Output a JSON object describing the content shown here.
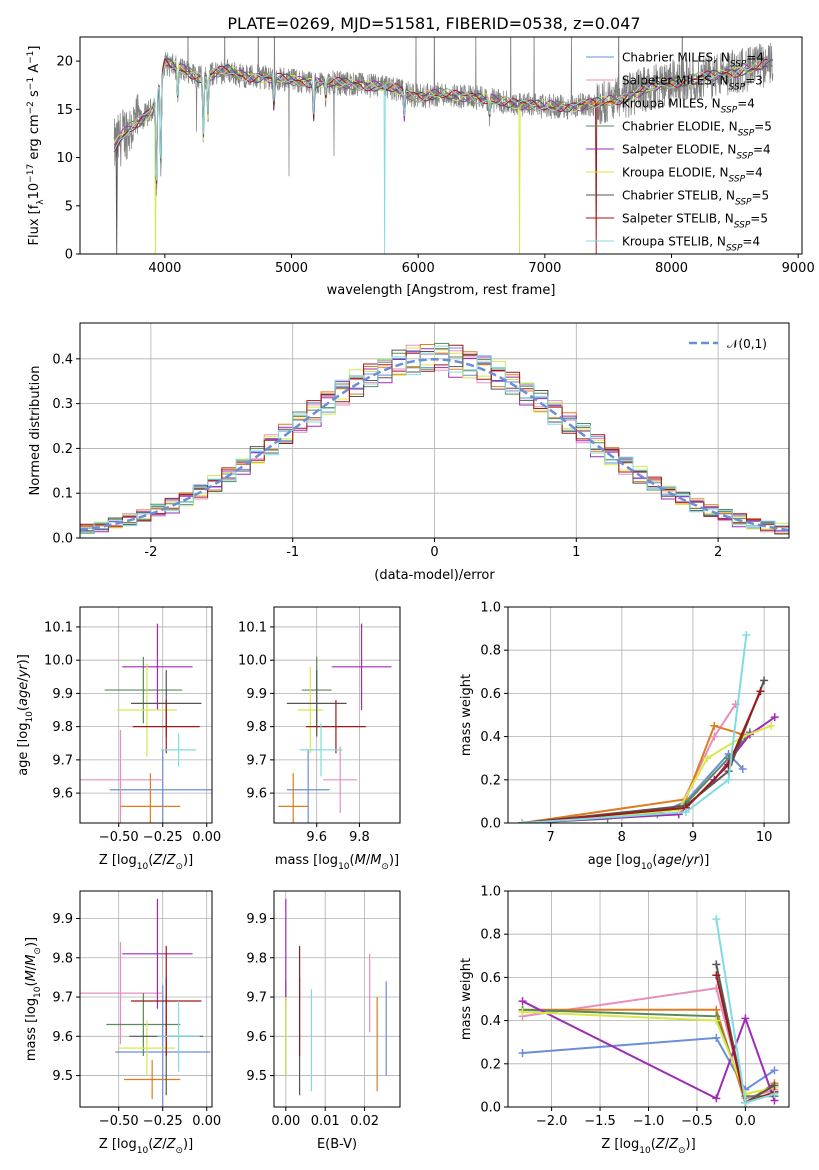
{
  "figure_title": "PLATE=0269, MJD=51581, FIBERID=0538, z=0.047",
  "colors": {
    "Chabrier MILES": "#6a8ed8",
    "Salpeter MILES": "#e58fbf",
    "Kroupa MILES": "#e07b20",
    "Chabrier ELODIE": "#5a8a5a",
    "Salpeter ELODIE": "#a02ab8",
    "Kroupa ELODIE": "#d8e84a",
    "Chabrier STELIB": "#555555",
    "Salpeter STELIB": "#a01818",
    "Kroupa STELIB": "#80dce0",
    "data": "#808080",
    "normal": "#6a8ed8"
  },
  "chart_data": [
    {
      "id": "spectrum",
      "type": "line",
      "title": "PLATE=0269, MJD=51581, FIBERID=0538, z=0.047",
      "xlabel": "wavelength [Angstrom, rest frame]",
      "ylabel": "Flux [f_λ 10^-17 erg cm^-2 s^-1 A^-1]",
      "xlim": [
        3330,
        9030
      ],
      "ylim": [
        0,
        22.5
      ],
      "xticks": [
        4000,
        5000,
        6000,
        7000,
        8000,
        9000
      ],
      "yticks": [
        0,
        5,
        10,
        15,
        20
      ],
      "legend_position": "top-right",
      "legend": [
        {
          "name": "Chabrier MILES",
          "nssp": "4"
        },
        {
          "name": "Salpeter MILES",
          "nssp": "3"
        },
        {
          "name": "Kroupa MILES",
          "nssp": "4"
        },
        {
          "name": "Chabrier ELODIE",
          "nssp": "5"
        },
        {
          "name": "Salpeter ELODIE",
          "nssp": "4"
        },
        {
          "name": "Kroupa ELODIE",
          "nssp": "4"
        },
        {
          "name": "Chabrier STELIB",
          "nssp": "5"
        },
        {
          "name": "Salpeter STELIB",
          "nssp": "5"
        },
        {
          "name": "Kroupa STELIB",
          "nssp": "4"
        }
      ],
      "continuum": {
        "x": [
          3600,
          3650,
          3700,
          3800,
          3900,
          3950,
          4000,
          4100,
          4200,
          4300,
          4400,
          4500,
          4600,
          4800,
          5000,
          5200,
          5400,
          5600,
          5800,
          6000,
          6200,
          6400,
          6600,
          6800,
          7000,
          7200,
          7400,
          7600,
          7800,
          8000,
          8200,
          8400,
          8600,
          8750
        ],
        "y": [
          11.0,
          12.0,
          12.8,
          13.8,
          15.0,
          17.0,
          19.8,
          19.3,
          18.8,
          18.2,
          18.8,
          19.0,
          18.5,
          18.3,
          18.0,
          17.8,
          17.7,
          17.5,
          17.2,
          16.3,
          16.6,
          16.3,
          15.9,
          15.6,
          15.3,
          15.3,
          15.6,
          16.1,
          17.1,
          17.8,
          18.2,
          18.6,
          19.2,
          19.6
        ]
      },
      "absorption_lines": [
        {
          "x": 3933,
          "depth": 10.0
        },
        {
          "x": 3968,
          "depth": 9.0
        },
        {
          "x": 4102,
          "depth": 3.0
        },
        {
          "x": 4304,
          "depth": 6.0
        },
        {
          "x": 4340,
          "depth": 4.0
        },
        {
          "x": 4861,
          "depth": 3.0
        },
        {
          "x": 5175,
          "depth": 3.5
        },
        {
          "x": 5270,
          "depth": 1.5
        },
        {
          "x": 5890,
          "depth": 2.5
        },
        {
          "x": 6563,
          "depth": 1.5
        }
      ],
      "masked_regions": [
        {
          "x": 3620,
          "drop": 11.5,
          "series": "Chabrier STELIB"
        },
        {
          "x": 3925,
          "drop": 14.5,
          "series": "Kroupa ELODIE"
        },
        {
          "x": 5735,
          "drop": 17.5,
          "series": "Kroupa STELIB"
        },
        {
          "x": 6800,
          "drop": 16.0,
          "series": "Kroupa ELODIE"
        },
        {
          "x": 7405,
          "drop": 16.0,
          "series": "Salpeter STELIB"
        }
      ],
      "data_range": [
        3600,
        8800
      ]
    },
    {
      "id": "residuals",
      "type": "area",
      "xlabel": "(data-model)/error",
      "ylabel": "Normed distribution",
      "xlim": [
        -2.5,
        2.5
      ],
      "ylim": [
        0,
        0.48
      ],
      "xticks": [
        -2,
        -1,
        0,
        1,
        2
      ],
      "yticks": [
        0.0,
        0.1,
        0.2,
        0.3,
        0.4
      ],
      "legend_position": "top-right",
      "legend": [
        {
          "name": "𝒩(0,1)",
          "style": "dashed"
        }
      ],
      "bin_width": 0.1,
      "bin_start": -2.5,
      "perturbation": [
        [
          0.005,
          -0.01,
          0.012,
          0.02,
          -0.015,
          0.01,
          0.025,
          -0.02,
          0.015,
          -0.01
        ],
        [
          -0.012,
          0.018,
          -0.008,
          0.03,
          0.01,
          -0.02,
          0.02,
          0.015,
          -0.025,
          0.01
        ],
        [
          0.02,
          0.005,
          -0.018,
          -0.01,
          0.028,
          0.012,
          -0.015,
          0.025,
          0.01,
          -0.02
        ],
        [
          -0.02,
          0.015,
          0.022,
          -0.012,
          -0.018,
          0.03,
          0.008,
          -0.01,
          0.02,
          0.015
        ],
        [
          0.015,
          -0.025,
          0.01,
          0.018,
          0.02,
          -0.015,
          -0.03,
          0.012,
          0.025,
          -0.008
        ],
        [
          0.01,
          0.022,
          -0.02,
          0.025,
          -0.01,
          0.018,
          0.015,
          -0.025,
          -0.012,
          0.03
        ],
        [
          -0.008,
          -0.015,
          0.028,
          -0.02,
          0.015,
          0.02,
          -0.01,
          0.018,
          0.012,
          -0.025
        ],
        [
          0.025,
          0.01,
          -0.012,
          0.015,
          -0.022,
          -0.01,
          0.03,
          0.02,
          -0.018,
          0.012
        ],
        [
          -0.015,
          0.02,
          0.015,
          -0.025,
          0.012,
          0.025,
          -0.02,
          -0.012,
          0.028,
          0.018
        ]
      ]
    },
    {
      "id": "age-vs-Z",
      "type": "scatter",
      "xlabel": "Z [log10(Z/Z☉)]",
      "ylabel": "age [log10(age/yr)]",
      "xlim": [
        -0.72,
        0.03
      ],
      "ylim": [
        9.51,
        10.16
      ],
      "xticks": [
        -0.5,
        -0.25,
        0.0
      ],
      "xticklabels": [
        "−0.50",
        "−0.25",
        "0.00"
      ],
      "yticks": [
        9.6,
        9.7,
        9.8,
        9.9,
        10.0,
        10.1
      ],
      "points": [
        {
          "series": "Chabrier MILES",
          "x": -0.25,
          "y": 9.61,
          "xerr": 0.3,
          "yerr": 0.12
        },
        {
          "series": "Salpeter MILES",
          "x": -0.49,
          "y": 9.64,
          "xerr": 0.24,
          "yerr": 0.15
        },
        {
          "series": "Kroupa MILES",
          "x": -0.32,
          "y": 9.56,
          "xerr": 0.17,
          "yerr": 0.1
        },
        {
          "series": "Chabrier ELODIE",
          "x": -0.36,
          "y": 9.91,
          "xerr": 0.22,
          "yerr": 0.1
        },
        {
          "series": "Salpeter ELODIE",
          "x": -0.28,
          "y": 9.98,
          "xerr": 0.2,
          "yerr": 0.13
        },
        {
          "series": "Kroupa ELODIE",
          "x": -0.34,
          "y": 9.85,
          "xerr": 0.17,
          "yerr": 0.14
        },
        {
          "series": "Chabrier STELIB",
          "x": -0.23,
          "y": 9.87,
          "xerr": 0.2,
          "yerr": 0.1
        },
        {
          "series": "Salpeter STELIB",
          "x": -0.23,
          "y": 9.8,
          "xerr": 0.19,
          "yerr": 0.08
        },
        {
          "series": "Kroupa STELIB",
          "x": -0.16,
          "y": 9.73,
          "xerr": 0.1,
          "yerr": 0.05
        }
      ]
    },
    {
      "id": "age-vs-mass",
      "type": "scatter",
      "xlabel": "mass [log10(M/M☉)]",
      "ylabel": "",
      "xlim": [
        9.4,
        9.99
      ],
      "ylim": [
        9.51,
        10.16
      ],
      "xticks": [
        9.6,
        9.8
      ],
      "yticks": [
        9.6,
        9.7,
        9.8,
        9.9,
        10.0,
        10.1
      ],
      "points": [
        {
          "series": "Chabrier MILES",
          "x": 9.56,
          "y": 9.61,
          "xerr": 0.1,
          "yerr": 0.12
        },
        {
          "series": "Salpeter MILES",
          "x": 9.71,
          "y": 9.64,
          "xerr": 0.08,
          "yerr": 0.1
        },
        {
          "series": "Kroupa MILES",
          "x": 9.49,
          "y": 9.56,
          "xerr": 0.07,
          "yerr": 0.1
        },
        {
          "series": "Chabrier ELODIE",
          "x": 9.6,
          "y": 9.91,
          "xerr": 0.07,
          "yerr": 0.1
        },
        {
          "series": "Salpeter ELODIE",
          "x": 9.81,
          "y": 9.98,
          "xerr": 0.14,
          "yerr": 0.13
        },
        {
          "series": "Kroupa ELODIE",
          "x": 9.57,
          "y": 9.85,
          "xerr": 0.06,
          "yerr": 0.13
        },
        {
          "series": "Chabrier STELIB",
          "x": 9.6,
          "y": 9.87,
          "xerr": 0.14,
          "yerr": 0.1
        },
        {
          "series": "Salpeter STELIB",
          "x": 9.69,
          "y": 9.8,
          "xerr": 0.14,
          "yerr": 0.08
        },
        {
          "series": "Kroupa STELIB",
          "x": 9.62,
          "y": 9.73,
          "xerr": 0.1,
          "yerr": 0.08
        }
      ]
    },
    {
      "id": "weight-vs-age",
      "type": "line",
      "xlabel": "age [log10(age/yr)]",
      "ylabel": "mass weight",
      "xlim": [
        6.4,
        10.35
      ],
      "ylim": [
        0,
        1.0
      ],
      "xticks": [
        7,
        8,
        9,
        10
      ],
      "yticks": [
        0.0,
        0.2,
        0.4,
        0.6,
        0.8,
        1.0
      ],
      "series": [
        {
          "name": "Chabrier MILES",
          "x": [
            6.6,
            8.5,
            8.9,
            9.5,
            9.7
          ],
          "y": [
            0.0,
            0.04,
            0.1,
            0.32,
            0.25
          ]
        },
        {
          "name": "Salpeter MILES",
          "x": [
            6.6,
            8.8,
            9.3,
            9.6
          ],
          "y": [
            0.0,
            0.06,
            0.4,
            0.55
          ]
        },
        {
          "name": "Kroupa MILES",
          "x": [
            6.6,
            8.9,
            9.3,
            9.7
          ],
          "y": [
            0.0,
            0.11,
            0.45,
            0.41
          ]
        },
        {
          "name": "Chabrier ELODIE",
          "x": [
            6.6,
            7.8,
            8.5,
            8.9,
            9.5,
            9.8
          ],
          "y": [
            0.0,
            0.02,
            0.05,
            0.09,
            0.3,
            0.42
          ]
        },
        {
          "name": "Salpeter ELODIE",
          "x": [
            6.6,
            8.8,
            9.3,
            9.8,
            10.15
          ],
          "y": [
            0.0,
            0.04,
            0.2,
            0.41,
            0.49
          ]
        },
        {
          "name": "Kroupa ELODIE",
          "x": [
            6.6,
            8.8,
            9.2,
            9.7,
            10.1
          ],
          "y": [
            0.0,
            0.06,
            0.3,
            0.4,
            0.45
          ]
        },
        {
          "name": "Chabrier STELIB",
          "x": [
            6.6,
            8.9,
            9.5,
            10.0
          ],
          "y": [
            0.0,
            0.08,
            0.24,
            0.66
          ]
        },
        {
          "name": "Salpeter STELIB",
          "x": [
            6.6,
            8.9,
            9.5,
            9.95
          ],
          "y": [
            0.0,
            0.07,
            0.27,
            0.61
          ]
        },
        {
          "name": "Kroupa STELIB",
          "x": [
            6.6,
            8.9,
            9.5,
            9.75
          ],
          "y": [
            0.0,
            0.05,
            0.2,
            0.87
          ]
        }
      ]
    },
    {
      "id": "mass-vs-Z",
      "type": "scatter",
      "xlabel": "Z [log10(Z/Z☉)]",
      "ylabel": "mass [log10(M/M☉)]",
      "xlim": [
        -0.72,
        0.03
      ],
      "ylim": [
        9.42,
        9.97
      ],
      "xticks": [
        -0.5,
        -0.25,
        0.0
      ],
      "xticklabels": [
        "−0.50",
        "−0.25",
        "0.00"
      ],
      "yticks": [
        9.5,
        9.6,
        9.7,
        9.8,
        9.9
      ],
      "points": [
        {
          "series": "Chabrier MILES",
          "x": -0.25,
          "y": 9.56,
          "xerr": 0.27,
          "yerr": 0.17
        },
        {
          "series": "Salpeter MILES",
          "x": -0.49,
          "y": 9.71,
          "xerr": 0.24,
          "yerr": 0.13
        },
        {
          "series": "Kroupa MILES",
          "x": -0.31,
          "y": 9.49,
          "xerr": 0.16,
          "yerr": 0.05
        },
        {
          "series": "Chabrier ELODIE",
          "x": -0.36,
          "y": 9.63,
          "xerr": 0.21,
          "yerr": 0.08
        },
        {
          "series": "Salpeter ELODIE",
          "x": -0.28,
          "y": 9.81,
          "xerr": 0.2,
          "yerr": 0.14
        },
        {
          "series": "Kroupa ELODIE",
          "x": -0.34,
          "y": 9.57,
          "xerr": 0.16,
          "yerr": 0.07
        },
        {
          "series": "Chabrier STELIB",
          "x": -0.23,
          "y": 9.6,
          "xerr": 0.21,
          "yerr": 0.15
        },
        {
          "series": "Salpeter STELIB",
          "x": -0.23,
          "y": 9.69,
          "xerr": 0.2,
          "yerr": 0.14
        },
        {
          "series": "Kroupa STELIB",
          "x": -0.16,
          "y": 9.6,
          "xerr": 0.12,
          "yerr": 0.09
        }
      ]
    },
    {
      "id": "mass-vs-ebv",
      "type": "scatter",
      "xlabel": "E(B-V)",
      "ylabel": "",
      "xlim": [
        -0.003,
        0.029
      ],
      "ylim": [
        9.42,
        9.97
      ],
      "xticks": [
        0.0,
        0.01,
        0.02
      ],
      "xticklabels": [
        "0.00",
        "0.01",
        "0.02"
      ],
      "yticks": [
        9.5,
        9.6,
        9.7,
        9.8,
        9.9
      ],
      "points": [
        {
          "series": "Chabrier MILES",
          "x": 0.0255,
          "y": 9.62,
          "xerr": 0.0,
          "yerr": 0.12
        },
        {
          "series": "Salpeter MILES",
          "x": 0.0213,
          "y": 9.71,
          "xerr": 0.0,
          "yerr": 0.1
        },
        {
          "series": "Kroupa MILES",
          "x": 0.0232,
          "y": 9.58,
          "xerr": 0.0,
          "yerr": 0.12
        },
        {
          "series": "Chabrier ELODIE",
          "x": 0.0,
          "y": 9.62,
          "xerr": 0.0,
          "yerr": 0.12
        },
        {
          "series": "Salpeter ELODIE",
          "x": 0.0,
          "y": 9.82,
          "xerr": 0.0,
          "yerr": 0.13
        },
        {
          "series": "Kroupa ELODIE",
          "x": 0.0,
          "y": 9.6,
          "xerr": 0.0,
          "yerr": 0.1
        },
        {
          "series": "Chabrier STELIB",
          "x": 0.0035,
          "y": 9.6,
          "xerr": 0.0,
          "yerr": 0.15
        },
        {
          "series": "Salpeter STELIB",
          "x": 0.0035,
          "y": 9.69,
          "xerr": 0.0,
          "yerr": 0.14
        },
        {
          "series": "Kroupa STELIB",
          "x": 0.0065,
          "y": 9.59,
          "xerr": 0.0,
          "yerr": 0.13
        }
      ]
    },
    {
      "id": "weight-vs-Z",
      "type": "line",
      "xlabel": "Z [log10(Z/Z☉)]",
      "ylabel": "mass weight",
      "xlim": [
        -2.45,
        0.45
      ],
      "ylim": [
        0,
        1.0
      ],
      "xticks": [
        -2.0,
        -1.5,
        -1.0,
        -0.5,
        0.0
      ],
      "xticklabels": [
        "−2.0",
        "−1.5",
        "−1.0",
        "−0.5",
        "0.0"
      ],
      "yticks": [
        0.0,
        0.2,
        0.4,
        0.6,
        0.8,
        1.0
      ],
      "series": [
        {
          "name": "Chabrier MILES",
          "x": [
            -2.3,
            -0.3,
            0.0,
            0.3
          ],
          "y": [
            0.25,
            0.32,
            0.08,
            0.17
          ]
        },
        {
          "name": "Salpeter MILES",
          "x": [
            -2.3,
            -0.3,
            0.0,
            0.3
          ],
          "y": [
            0.42,
            0.55,
            0.04,
            0.08
          ]
        },
        {
          "name": "Kroupa MILES",
          "x": [
            -2.3,
            -0.3,
            0.0,
            0.3
          ],
          "y": [
            0.45,
            0.45,
            0.02,
            0.11
          ]
        },
        {
          "name": "Chabrier ELODIE",
          "x": [
            -2.3,
            -0.3,
            0.0,
            0.3
          ],
          "y": [
            0.45,
            0.42,
            0.05,
            0.05
          ]
        },
        {
          "name": "Salpeter ELODIE",
          "x": [
            -2.3,
            -0.3,
            0.0,
            0.3
          ],
          "y": [
            0.49,
            0.04,
            0.41,
            0.03
          ]
        },
        {
          "name": "Kroupa ELODIE",
          "x": [
            -2.3,
            -0.3,
            0.0,
            0.3
          ],
          "y": [
            0.44,
            0.4,
            0.06,
            0.09
          ]
        },
        {
          "name": "Chabrier STELIB",
          "x": [
            -0.3,
            0.0,
            0.3
          ],
          "y": [
            0.66,
            0.02,
            0.1
          ]
        },
        {
          "name": "Salpeter STELIB",
          "x": [
            -0.3,
            0.0,
            0.3
          ],
          "y": [
            0.61,
            0.02,
            0.07
          ]
        },
        {
          "name": "Kroupa STELIB",
          "x": [
            -0.3,
            0.0,
            0.3
          ],
          "y": [
            0.87,
            0.02,
            0.06
          ]
        }
      ]
    }
  ]
}
